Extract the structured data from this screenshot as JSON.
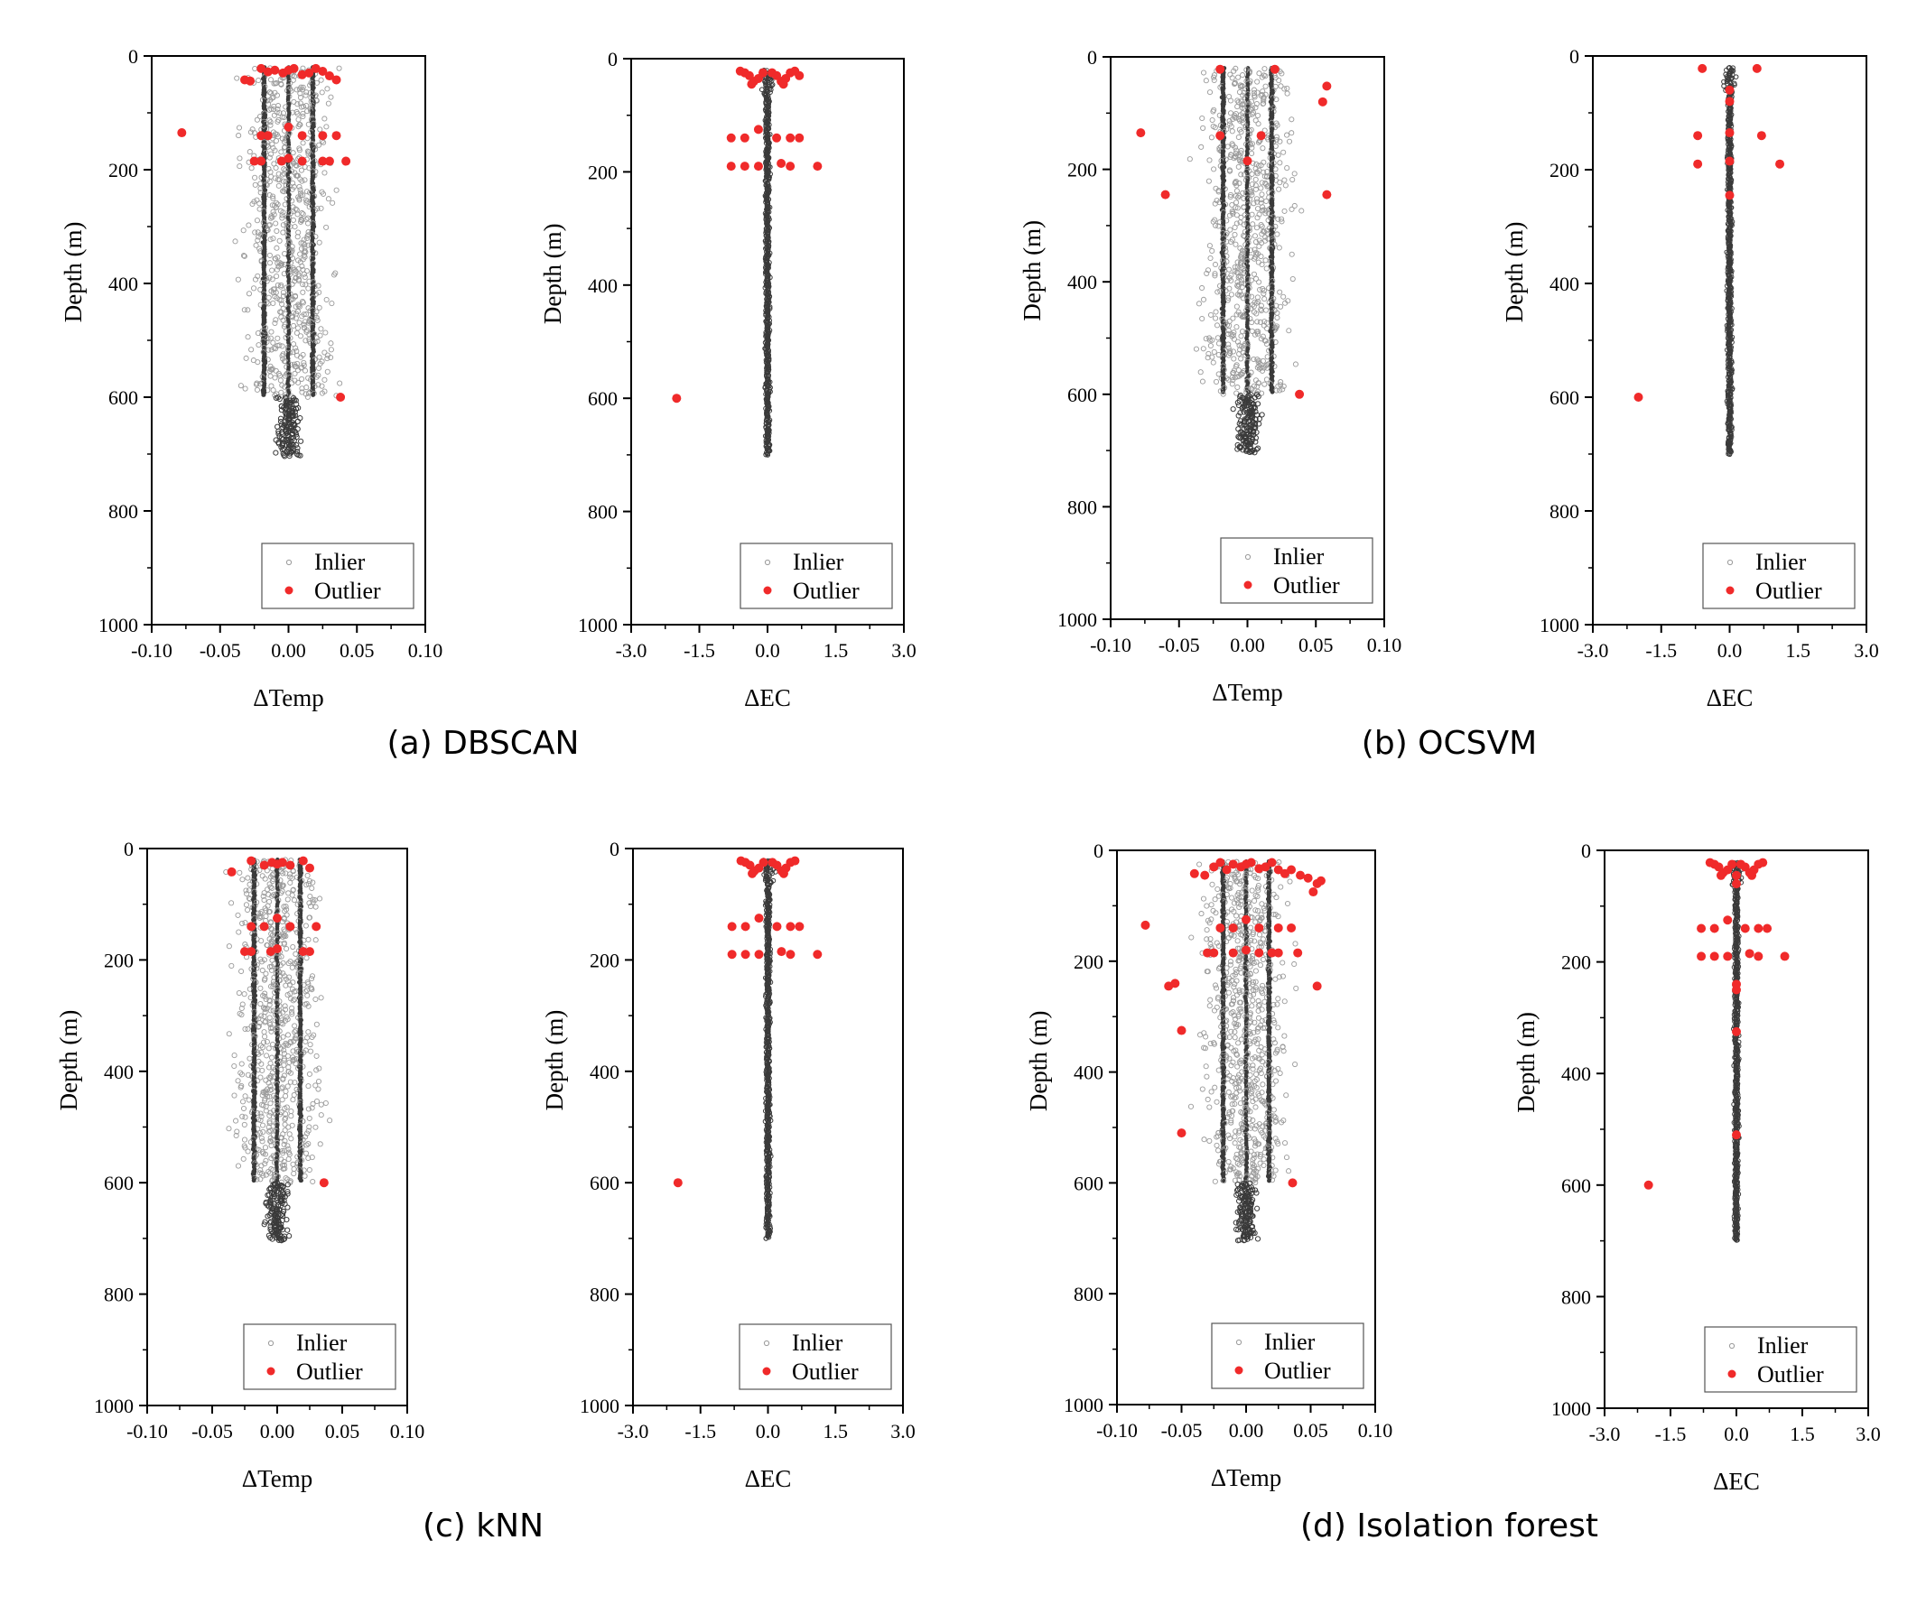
{
  "figure": {
    "legend_labels": {
      "inlier": "Inlier",
      "outlier": "Outlier"
    },
    "colors": {
      "inlier": "#9a9a9a",
      "inlier_dense": "#3a3a3a",
      "outlier": "#f02a2a",
      "axis": "#000000"
    },
    "captions": [
      {
        "id": "a",
        "text": "(a) DBSCAN"
      },
      {
        "id": "b",
        "text": "(b) OCSVM"
      },
      {
        "id": "c",
        "text": "(c) kNN"
      },
      {
        "id": "d",
        "text": "(d) Isolation forest"
      }
    ]
  },
  "chart_data": [
    {
      "id": "a-temp",
      "type": "scatter",
      "group": "a",
      "kind": "temp",
      "xlabel": "ΔTemp",
      "ylabel": "Depth (m)",
      "xlim": [
        -0.1,
        0.1
      ],
      "ylim": [
        0,
        1000
      ],
      "y_inverted": true,
      "xticks": [
        "-0.10",
        "-0.05",
        "0.00",
        "0.05",
        "0.10"
      ],
      "yticks": [
        "0",
        "200",
        "400",
        "600",
        "800",
        "1000"
      ],
      "legend_position": "bottom-right",
      "inlier_depth_range": [
        20,
        700
      ],
      "series": [
        {
          "name": "Outlier",
          "points": [
            [
              -0.078,
              135
            ],
            [
              -0.032,
              42
            ],
            [
              -0.028,
              44
            ],
            [
              -0.02,
              22
            ],
            [
              -0.015,
              28
            ],
            [
              -0.01,
              25
            ],
            [
              -0.004,
              30
            ],
            [
              0.0,
              25
            ],
            [
              0.004,
              22
            ],
            [
              0.01,
              33
            ],
            [
              0.015,
              30
            ],
            [
              0.02,
              22
            ],
            [
              0.025,
              27
            ],
            [
              0.03,
              35
            ],
            [
              0.035,
              42
            ],
            [
              -0.02,
              140
            ],
            [
              -0.015,
              140
            ],
            [
              0.0,
              125
            ],
            [
              0.01,
              140
            ],
            [
              0.025,
              140
            ],
            [
              0.035,
              140
            ],
            [
              -0.025,
              185
            ],
            [
              -0.02,
              185
            ],
            [
              -0.005,
              185
            ],
            [
              0.0,
              180
            ],
            [
              0.01,
              185
            ],
            [
              0.025,
              185
            ],
            [
              0.03,
              185
            ],
            [
              0.042,
              185
            ],
            [
              0.038,
              600
            ]
          ]
        }
      ]
    },
    {
      "id": "a-ec",
      "type": "scatter",
      "group": "a",
      "kind": "ec",
      "xlabel": "ΔEC",
      "ylabel": "Depth (m)",
      "xlim": [
        -3.0,
        3.0
      ],
      "ylim": [
        0,
        1000
      ],
      "y_inverted": true,
      "xticks": [
        "-3.0",
        "-1.5",
        "0.0",
        "1.5",
        "3.0"
      ],
      "yticks": [
        "0",
        "200",
        "400",
        "600",
        "800",
        "1000"
      ],
      "legend_position": "bottom-right",
      "inlier_depth_range": [
        20,
        700
      ],
      "series": [
        {
          "name": "Outlier",
          "points": [
            [
              -0.6,
              22
            ],
            [
              -0.5,
              25
            ],
            [
              -0.4,
              30
            ],
            [
              -0.3,
              40
            ],
            [
              -0.2,
              35
            ],
            [
              -0.1,
              25
            ],
            [
              0.1,
              25
            ],
            [
              0.2,
              30
            ],
            [
              0.3,
              40
            ],
            [
              0.4,
              35
            ],
            [
              0.5,
              25
            ],
            [
              0.6,
              22
            ],
            [
              0.7,
              30
            ],
            [
              -0.35,
              45
            ],
            [
              0.35,
              45
            ],
            [
              -0.8,
              140
            ],
            [
              -0.5,
              140
            ],
            [
              -0.2,
              125
            ],
            [
              0.2,
              140
            ],
            [
              0.5,
              140
            ],
            [
              0.7,
              140
            ],
            [
              -0.8,
              190
            ],
            [
              -0.5,
              190
            ],
            [
              -0.2,
              190
            ],
            [
              0.3,
              185
            ],
            [
              0.5,
              190
            ],
            [
              1.1,
              190
            ],
            [
              -2.0,
              600
            ]
          ]
        }
      ]
    },
    {
      "id": "b-temp",
      "type": "scatter",
      "group": "b",
      "kind": "temp",
      "xlabel": "ΔTemp",
      "ylabel": "Depth (m)",
      "xlim": [
        -0.1,
        0.1
      ],
      "ylim": [
        0,
        1000
      ],
      "y_inverted": true,
      "xticks": [
        "-0.10",
        "-0.05",
        "0.00",
        "0.05",
        "0.10"
      ],
      "yticks": [
        "0",
        "200",
        "400",
        "600",
        "800",
        "1000"
      ],
      "legend_position": "bottom-right",
      "inlier_depth_range": [
        20,
        700
      ],
      "series": [
        {
          "name": "Outlier",
          "points": [
            [
              -0.078,
              135
            ],
            [
              -0.02,
              22
            ],
            [
              0.02,
              22
            ],
            [
              0.058,
              52
            ],
            [
              0.055,
              80
            ],
            [
              -0.02,
              140
            ],
            [
              0.01,
              140
            ],
            [
              0.0,
              185
            ],
            [
              -0.06,
              245
            ],
            [
              0.058,
              245
            ],
            [
              0.038,
              600
            ]
          ]
        }
      ]
    },
    {
      "id": "b-ec",
      "type": "scatter",
      "group": "b",
      "kind": "ec",
      "xlabel": "ΔEC",
      "ylabel": "Depth (m)",
      "xlim": [
        -3.0,
        3.0
      ],
      "ylim": [
        0,
        1000
      ],
      "y_inverted": true,
      "xticks": [
        "-3.0",
        "-1.5",
        "0.0",
        "1.5",
        "3.0"
      ],
      "yticks": [
        "0",
        "200",
        "400",
        "600",
        "800",
        "1000"
      ],
      "legend_position": "bottom-right",
      "inlier_depth_range": [
        20,
        700
      ],
      "series": [
        {
          "name": "Outlier",
          "points": [
            [
              -0.6,
              22
            ],
            [
              0.6,
              22
            ],
            [
              0.0,
              60
            ],
            [
              0.0,
              80
            ],
            [
              -0.7,
              140
            ],
            [
              0.0,
              135
            ],
            [
              0.7,
              140
            ],
            [
              -0.7,
              190
            ],
            [
              0.0,
              185
            ],
            [
              1.1,
              190
            ],
            [
              0.0,
              245
            ],
            [
              -2.0,
              600
            ]
          ]
        }
      ]
    },
    {
      "id": "c-temp",
      "type": "scatter",
      "group": "c",
      "kind": "temp",
      "xlabel": "ΔTemp",
      "ylabel": "Depth (m)",
      "xlim": [
        -0.1,
        0.1
      ],
      "ylim": [
        0,
        1000
      ],
      "y_inverted": true,
      "xticks": [
        "-0.10",
        "-0.05",
        "0.00",
        "0.05",
        "0.10"
      ],
      "yticks": [
        "0",
        "200",
        "400",
        "600",
        "800",
        "1000"
      ],
      "legend_position": "bottom-right",
      "inlier_depth_range": [
        20,
        700
      ],
      "series": [
        {
          "name": "Outlier",
          "points": [
            [
              -0.035,
              42
            ],
            [
              -0.02,
              22
            ],
            [
              -0.01,
              30
            ],
            [
              -0.004,
              25
            ],
            [
              0.0,
              28
            ],
            [
              0.004,
              25
            ],
            [
              0.01,
              30
            ],
            [
              0.02,
              22
            ],
            [
              0.025,
              35
            ],
            [
              -0.02,
              140
            ],
            [
              -0.01,
              140
            ],
            [
              0.0,
              125
            ],
            [
              0.01,
              140
            ],
            [
              0.03,
              140
            ],
            [
              -0.025,
              185
            ],
            [
              -0.02,
              185
            ],
            [
              -0.005,
              185
            ],
            [
              0.0,
              180
            ],
            [
              0.02,
              185
            ],
            [
              0.025,
              185
            ],
            [
              0.036,
              600
            ]
          ]
        }
      ]
    },
    {
      "id": "c-ec",
      "type": "scatter",
      "group": "c",
      "kind": "ec",
      "xlabel": "ΔEC",
      "ylabel": "Depth (m)",
      "xlim": [
        -3.0,
        3.0
      ],
      "ylim": [
        0,
        1000
      ],
      "y_inverted": true,
      "xticks": [
        "-3.0",
        "-1.5",
        "0.0",
        "1.5",
        "3.0"
      ],
      "yticks": [
        "0",
        "200",
        "400",
        "600",
        "800",
        "1000"
      ],
      "legend_position": "bottom-right",
      "inlier_depth_range": [
        20,
        700
      ],
      "series": [
        {
          "name": "Outlier",
          "points": [
            [
              -0.6,
              22
            ],
            [
              -0.5,
              25
            ],
            [
              -0.4,
              30
            ],
            [
              -0.3,
              40
            ],
            [
              -0.2,
              35
            ],
            [
              -0.1,
              25
            ],
            [
              0.1,
              25
            ],
            [
              0.2,
              30
            ],
            [
              0.3,
              40
            ],
            [
              0.4,
              35
            ],
            [
              0.5,
              25
            ],
            [
              0.6,
              22
            ],
            [
              -0.35,
              45
            ],
            [
              0.35,
              45
            ],
            [
              -0.8,
              140
            ],
            [
              -0.5,
              140
            ],
            [
              -0.2,
              125
            ],
            [
              0.2,
              140
            ],
            [
              0.5,
              140
            ],
            [
              0.7,
              140
            ],
            [
              -0.8,
              190
            ],
            [
              -0.5,
              190
            ],
            [
              -0.2,
              190
            ],
            [
              0.3,
              185
            ],
            [
              0.5,
              190
            ],
            [
              1.1,
              190
            ],
            [
              -2.0,
              600
            ]
          ]
        }
      ]
    },
    {
      "id": "d-temp",
      "type": "scatter",
      "group": "d",
      "kind": "temp",
      "xlabel": "ΔTemp",
      "ylabel": "Depth (m)",
      "xlim": [
        -0.1,
        0.1
      ],
      "ylim": [
        0,
        1000
      ],
      "y_inverted": true,
      "xticks": [
        "-0.10",
        "-0.05",
        "0.00",
        "0.05",
        "0.10"
      ],
      "yticks": [
        "0",
        "200",
        "400",
        "600",
        "800",
        "1000"
      ],
      "legend_position": "bottom-right",
      "inlier_depth_range": [
        20,
        700
      ],
      "series": [
        {
          "name": "Outlier",
          "points": [
            [
              -0.04,
              42
            ],
            [
              -0.032,
              45
            ],
            [
              -0.025,
              30
            ],
            [
              -0.02,
              22
            ],
            [
              -0.015,
              35
            ],
            [
              -0.01,
              25
            ],
            [
              -0.004,
              30
            ],
            [
              0.0,
              25
            ],
            [
              0.004,
              22
            ],
            [
              0.01,
              33
            ],
            [
              0.015,
              30
            ],
            [
              0.02,
              22
            ],
            [
              0.025,
              35
            ],
            [
              0.03,
              42
            ],
            [
              0.035,
              35
            ],
            [
              0.042,
              45
            ],
            [
              0.048,
              50
            ],
            [
              0.055,
              60
            ],
            [
              0.052,
              75
            ],
            [
              0.058,
              55
            ],
            [
              -0.078,
              135
            ],
            [
              -0.02,
              140
            ],
            [
              -0.01,
              140
            ],
            [
              0.0,
              125
            ],
            [
              0.01,
              140
            ],
            [
              0.025,
              140
            ],
            [
              0.035,
              140
            ],
            [
              -0.03,
              185
            ],
            [
              -0.025,
              185
            ],
            [
              -0.01,
              185
            ],
            [
              0.0,
              180
            ],
            [
              0.01,
              185
            ],
            [
              0.02,
              185
            ],
            [
              0.025,
              185
            ],
            [
              0.04,
              185
            ],
            [
              -0.06,
              245
            ],
            [
              -0.055,
              240
            ],
            [
              0.055,
              245
            ],
            [
              -0.05,
              325
            ],
            [
              -0.05,
              510
            ],
            [
              0.036,
              600
            ]
          ]
        }
      ]
    },
    {
      "id": "d-ec",
      "type": "scatter",
      "group": "d",
      "kind": "ec",
      "xlabel": "ΔEC",
      "ylabel": "Depth (m)",
      "xlim": [
        -3.0,
        3.0
      ],
      "ylim": [
        0,
        1000
      ],
      "y_inverted": true,
      "xticks": [
        "-3.0",
        "-1.5",
        "0.0",
        "1.5",
        "3.0"
      ],
      "yticks": [
        "0",
        "200",
        "400",
        "600",
        "800",
        "1000"
      ],
      "legend_position": "bottom-right",
      "inlier_depth_range": [
        20,
        700
      ],
      "series": [
        {
          "name": "Outlier",
          "points": [
            [
              -0.6,
              22
            ],
            [
              -0.5,
              25
            ],
            [
              -0.4,
              30
            ],
            [
              -0.3,
              40
            ],
            [
              -0.2,
              35
            ],
            [
              -0.1,
              25
            ],
            [
              0.0,
              45
            ],
            [
              0.1,
              25
            ],
            [
              0.2,
              30
            ],
            [
              0.3,
              40
            ],
            [
              0.4,
              35
            ],
            [
              0.5,
              25
            ],
            [
              0.6,
              22
            ],
            [
              -0.35,
              45
            ],
            [
              0.35,
              45
            ],
            [
              0.0,
              60
            ],
            [
              -0.8,
              140
            ],
            [
              -0.5,
              140
            ],
            [
              -0.2,
              125
            ],
            [
              0.2,
              140
            ],
            [
              0.5,
              140
            ],
            [
              0.7,
              140
            ],
            [
              -0.8,
              190
            ],
            [
              -0.5,
              190
            ],
            [
              -0.2,
              190
            ],
            [
              0.3,
              185
            ],
            [
              0.5,
              190
            ],
            [
              1.1,
              190
            ],
            [
              0.0,
              240
            ],
            [
              0.0,
              250
            ],
            [
              0.0,
              325
            ],
            [
              0.0,
              510
            ],
            [
              -2.0,
              600
            ]
          ]
        }
      ]
    }
  ]
}
